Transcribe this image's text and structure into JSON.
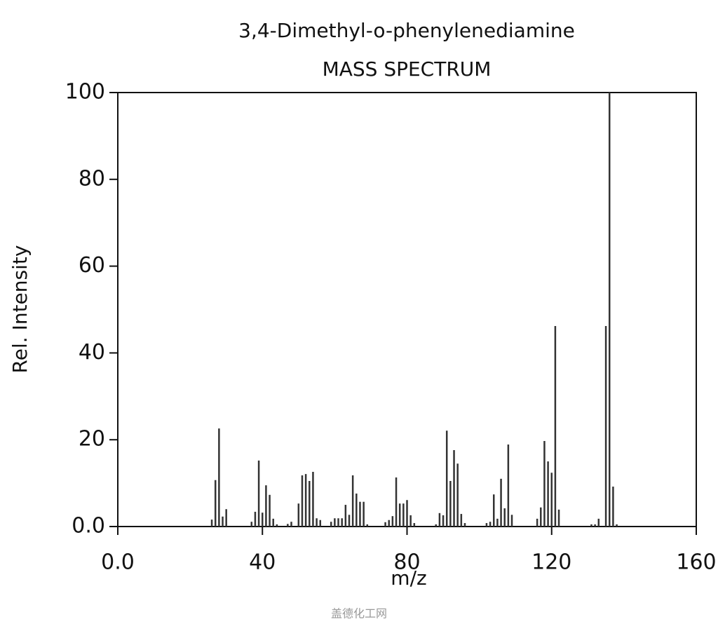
{
  "chart_data": {
    "type": "stem",
    "title": "3,4-Dimethyl-o-phenylenediamine",
    "subtitle": "MASS SPECTRUM",
    "x_label": "m/z",
    "y_label": "Rel. Intensity",
    "watermark": "盖德化工网",
    "color": "#333333",
    "x": [
      26,
      27,
      28,
      29,
      30,
      37,
      38,
      39,
      40,
      41,
      42,
      43,
      44,
      47,
      48,
      50,
      51,
      52,
      53,
      54,
      55,
      56,
      59,
      60,
      61,
      62,
      63,
      64,
      65,
      66,
      67,
      68,
      69,
      74,
      75,
      76,
      77,
      78,
      79,
      80,
      81,
      82,
      88,
      89,
      90,
      91,
      92,
      93,
      94,
      95,
      96,
      102,
      103,
      104,
      105,
      106,
      107,
      108,
      109,
      116,
      117,
      118,
      119,
      120,
      121,
      122,
      131,
      132,
      133,
      135,
      136,
      137,
      138
    ],
    "values": [
      1.6,
      10.7,
      22.6,
      2.3,
      4,
      1.1,
      3.4,
      15.2,
      3.2,
      9.5,
      7.3,
      1.8,
      0.5,
      0.6,
      1.1,
      5.3,
      11.8,
      12.1,
      10.5,
      12.6,
      1.9,
      1.5,
      1.1,
      1.9,
      1.9,
      1.9,
      5,
      2.7,
      11.8,
      7.6,
      5.7,
      5.7,
      0.5,
      1,
      1.5,
      2.4,
      11.3,
      5.3,
      5.3,
      6.1,
      2.6,
      0.8,
      0.5,
      3.1,
      2.6,
      22.1,
      10.5,
      17.6,
      14.5,
      2.9,
      0.8,
      0.8,
      1.1,
      7.4,
      1.8,
      11,
      4.2,
      18.9,
      2.7,
      1.8,
      4.4,
      19.7,
      15,
      12.4,
      46.2,
      3.9,
      0.5,
      0.5,
      1.8,
      46.2,
      100,
      9.2,
      0.5
    ],
    "xlim": [
      0,
      160
    ],
    "xticks": [
      {
        "value": 0,
        "label": "0.0"
      },
      40,
      80,
      120,
      160
    ],
    "ylim": [
      0,
      100
    ],
    "yticks": [
      {
        "value": 0,
        "label": "0.0"
      },
      20,
      40,
      60,
      80,
      100
    ]
  }
}
